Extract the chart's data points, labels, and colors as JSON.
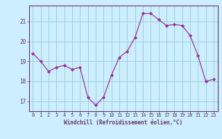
{
  "x": [
    0,
    1,
    2,
    3,
    4,
    5,
    6,
    7,
    8,
    9,
    10,
    11,
    12,
    13,
    14,
    15,
    16,
    17,
    18,
    19,
    20,
    21,
    22,
    23
  ],
  "y": [
    19.4,
    19.0,
    18.5,
    18.7,
    18.8,
    18.6,
    18.7,
    17.2,
    16.8,
    17.2,
    18.3,
    19.2,
    19.5,
    20.2,
    21.4,
    21.4,
    21.1,
    20.8,
    20.85,
    20.8,
    20.3,
    19.3,
    18.0,
    18.1
  ],
  "xlim": [
    -0.5,
    23.5
  ],
  "ylim": [
    16.5,
    21.8
  ],
  "yticks": [
    17,
    18,
    19,
    20,
    21
  ],
  "xticks": [
    0,
    1,
    2,
    3,
    4,
    5,
    6,
    7,
    8,
    9,
    10,
    11,
    12,
    13,
    14,
    15,
    16,
    17,
    18,
    19,
    20,
    21,
    22,
    23
  ],
  "xlabel": "Windchill (Refroidissement éolien,°C)",
  "line_color": "#993399",
  "marker_color": "#993399",
  "bg_color": "#cceeff",
  "grid_color": "#99cccc",
  "axis_color": "#663366",
  "tick_color": "#663366",
  "label_color": "#663366"
}
